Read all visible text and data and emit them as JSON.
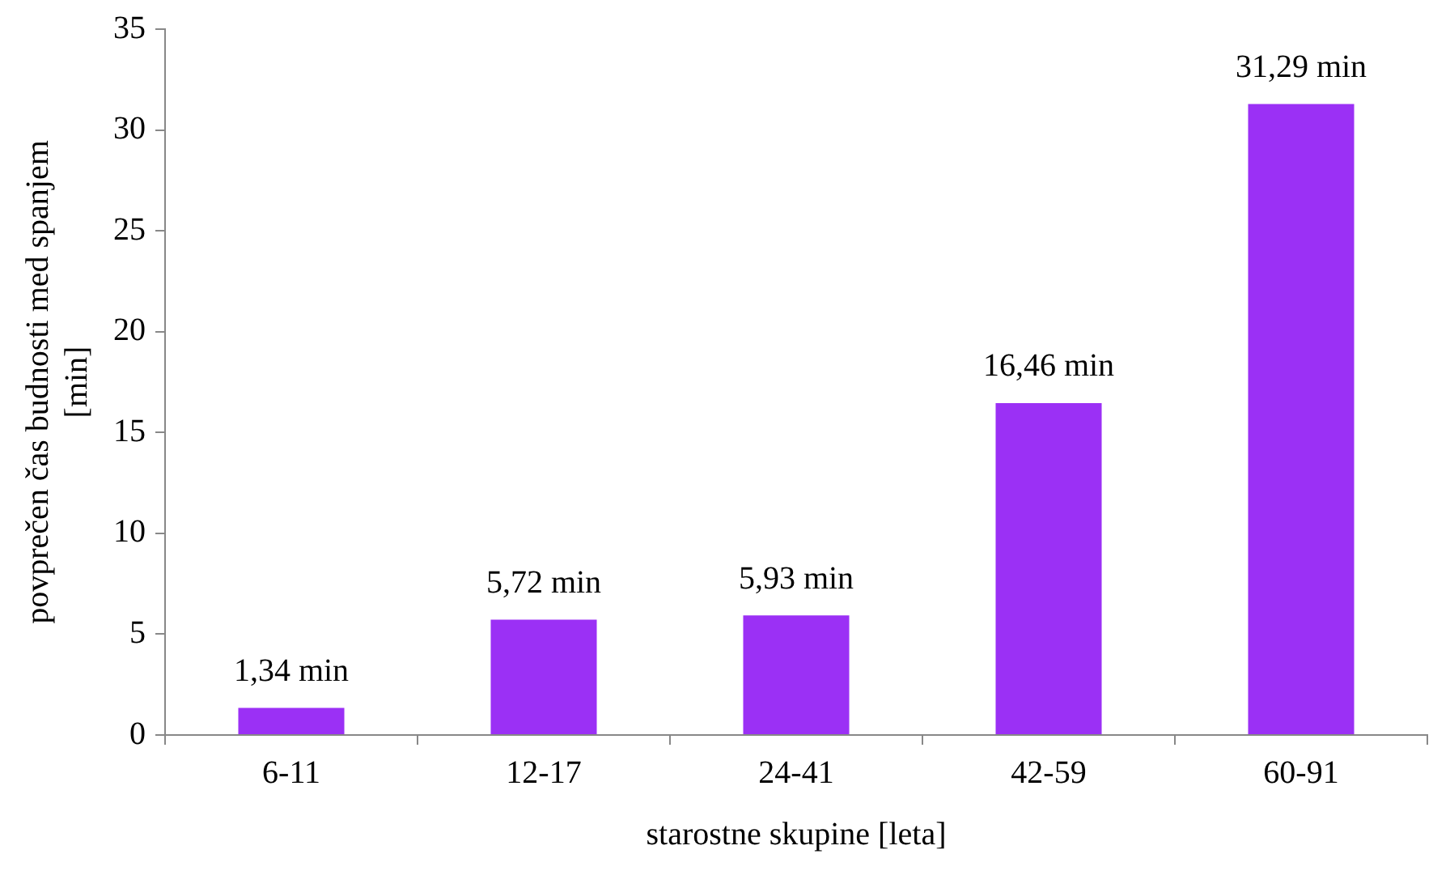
{
  "chart_data": {
    "type": "bar",
    "xlabel": "starostne skupine [leta]",
    "ylabel": "povprečen čas budnosti med spanjem [min]",
    "categories": [
      "6-11",
      "12-17",
      "24-41",
      "42-59",
      "60-91"
    ],
    "values": [
      1.34,
      5.72,
      5.93,
      16.46,
      31.29
    ],
    "value_labels": [
      "1,34 min",
      "5,72 min",
      "5,93 min",
      "16,46 min",
      "31,29 min"
    ],
    "color": "#9b30f5",
    "ylim": [
      0,
      35
    ],
    "yticks": [
      0,
      5,
      10,
      15,
      20,
      25,
      30,
      35
    ],
    "grid": false,
    "legend": false
  }
}
